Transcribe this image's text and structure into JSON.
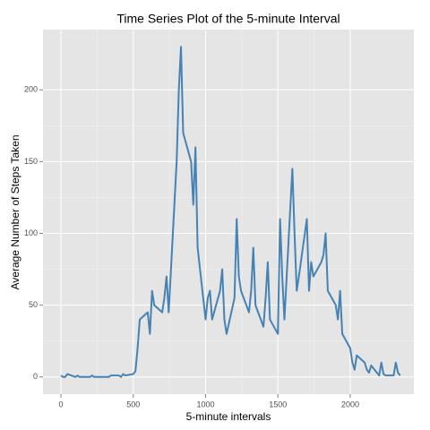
{
  "chart_data": {
    "type": "line",
    "title": "Time Series Plot of the 5-minute Interval",
    "x_label": "5-minute intervals",
    "y_label": "Average Number of Steps Taken",
    "x": [
      0,
      15,
      30,
      45,
      100,
      115,
      130,
      145,
      200,
      215,
      230,
      245,
      300,
      315,
      330,
      345,
      400,
      415,
      430,
      445,
      500,
      515,
      530,
      545,
      600,
      615,
      630,
      645,
      700,
      715,
      730,
      745,
      800,
      815,
      830,
      845,
      900,
      915,
      930,
      945,
      1000,
      1015,
      1030,
      1045,
      1100,
      1115,
      1130,
      1145,
      1200,
      1215,
      1230,
      1245,
      1300,
      1315,
      1330,
      1345,
      1400,
      1415,
      1430,
      1445,
      1500,
      1515,
      1530,
      1545,
      1600,
      1615,
      1630,
      1645,
      1700,
      1715,
      1730,
      1745,
      1800,
      1815,
      1830,
      1845,
      1900,
      1915,
      1930,
      1945,
      2000,
      2015,
      2030,
      2045,
      2100,
      2115,
      2130,
      2145,
      2200,
      2215,
      2230,
      2245,
      2300,
      2315,
      2330,
      2345
    ],
    "series": [
      {
        "name": "steps",
        "color": "#4682b4",
        "values": [
          1,
          0,
          0,
          2,
          0,
          1,
          0,
          0,
          0,
          1,
          0,
          0,
          0,
          0,
          0,
          1,
          1,
          0,
          2,
          1,
          2,
          4,
          20,
          40,
          45,
          30,
          60,
          50,
          45,
          55,
          70,
          45,
          150,
          200,
          230,
          170,
          150,
          120,
          160,
          90,
          40,
          55,
          60,
          40,
          60,
          75,
          40,
          30,
          55,
          110,
          70,
          60,
          45,
          60,
          90,
          50,
          35,
          55,
          80,
          40,
          30,
          110,
          70,
          40,
          145,
          100,
          60,
          70,
          110,
          60,
          80,
          70,
          80,
          85,
          100,
          60,
          50,
          40,
          60,
          30,
          20,
          10,
          5,
          15,
          10,
          5,
          3,
          8,
          1,
          10,
          2,
          1,
          1,
          10,
          3,
          1
        ]
      }
    ],
    "xlim": [
      -124,
      2440
    ],
    "ylim": [
      -12,
      242
    ],
    "xticks": [
      0,
      500,
      1000,
      1500,
      2000
    ],
    "yticks": [
      0,
      50,
      100,
      150,
      200
    ],
    "grid": true
  }
}
